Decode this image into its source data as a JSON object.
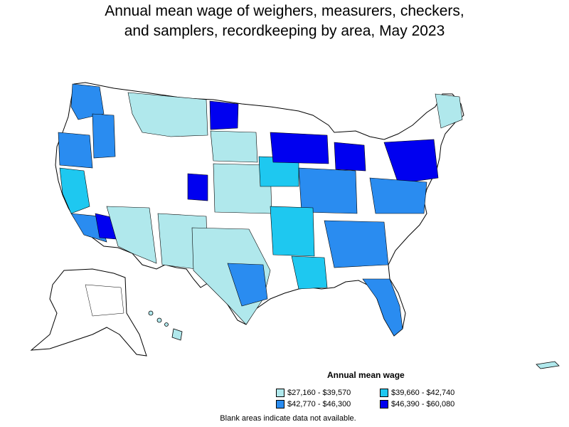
{
  "title": "Annual mean wage of weighers, measurers, checkers,\nand samplers, recordkeeping by area, May 2023",
  "legend": {
    "title": "Annual mean wage",
    "items": [
      {
        "label": "$27,160 - $39,570",
        "color": "#b0e8ec"
      },
      {
        "label": "$39,660 - $42,740",
        "color": "#1ec8f0"
      },
      {
        "label": "$42,770 - $46,300",
        "color": "#2a8cf0"
      },
      {
        "label": "$46,390 - $60,080",
        "color": "#0000f0"
      }
    ]
  },
  "footnote": "Blank areas indicate data not available.",
  "colors": {
    "outline": "#000000",
    "no_data": "#ffffff"
  }
}
